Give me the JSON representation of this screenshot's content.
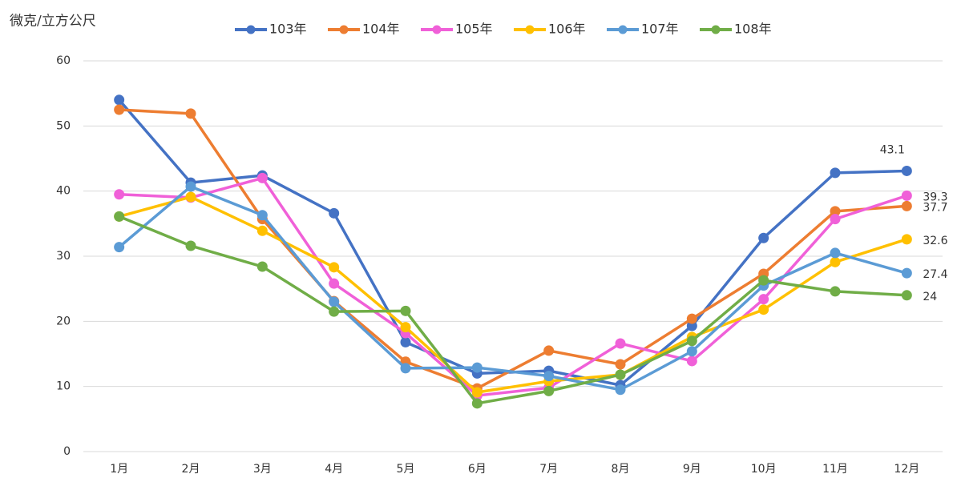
{
  "chart_data": {
    "type": "line",
    "y_axis_label": "微克/立方公尺",
    "categories": [
      "1月",
      "2月",
      "3月",
      "4月",
      "5月",
      "6月",
      "7月",
      "8月",
      "9月",
      "10月",
      "11月",
      "12月"
    ],
    "ylim": [
      0,
      60
    ],
    "yticks": [
      0,
      10,
      20,
      30,
      40,
      50,
      60
    ],
    "grid": true,
    "legend": "top",
    "series": [
      {
        "name": "103年",
        "color": "#4472c4",
        "values": [
          54.0,
          41.3,
          42.4,
          36.6,
          16.8,
          12.0,
          12.4,
          10.2,
          19.3,
          32.8,
          42.8,
          43.1
        ],
        "value_labels": [
          null,
          null,
          null,
          null,
          null,
          null,
          null,
          null,
          null,
          null,
          null,
          "43.1"
        ]
      },
      {
        "name": "104年",
        "color": "#ed7d31",
        "values": [
          52.5,
          51.9,
          35.7,
          23.1,
          13.8,
          9.7,
          15.5,
          13.4,
          20.4,
          27.3,
          36.9,
          37.7
        ],
        "value_labels": [
          null,
          null,
          null,
          null,
          null,
          null,
          null,
          null,
          null,
          null,
          null,
          "37.7"
        ]
      },
      {
        "name": "105年",
        "color": "#f060d8",
        "values": [
          39.5,
          39.0,
          42.0,
          25.8,
          18.2,
          8.6,
          9.8,
          16.6,
          13.9,
          23.4,
          35.7,
          39.3
        ],
        "value_labels": [
          null,
          null,
          null,
          null,
          null,
          null,
          null,
          null,
          null,
          null,
          null,
          "39.3"
        ]
      },
      {
        "name": "106年",
        "color": "#ffc000",
        "values": [
          36.1,
          39.1,
          33.9,
          28.3,
          19.1,
          9.1,
          10.8,
          11.8,
          17.6,
          21.8,
          29.1,
          32.6
        ],
        "value_labels": [
          null,
          null,
          null,
          null,
          null,
          null,
          null,
          null,
          null,
          null,
          null,
          "32.6"
        ]
      },
      {
        "name": "107年",
        "color": "#5b9bd5",
        "values": [
          31.4,
          40.7,
          36.3,
          23.0,
          12.8,
          12.9,
          11.6,
          9.5,
          15.4,
          25.5,
          30.5,
          27.4
        ],
        "value_labels": [
          null,
          null,
          null,
          null,
          null,
          null,
          null,
          null,
          null,
          null,
          null,
          "27.4"
        ]
      },
      {
        "name": "108年",
        "color": "#70ad47",
        "values": [
          36.1,
          31.6,
          28.4,
          21.5,
          21.6,
          7.4,
          9.3,
          11.8,
          17.0,
          26.3,
          24.6,
          24.0
        ],
        "value_labels": [
          null,
          null,
          null,
          null,
          null,
          null,
          null,
          null,
          null,
          null,
          null,
          "24"
        ]
      }
    ]
  }
}
